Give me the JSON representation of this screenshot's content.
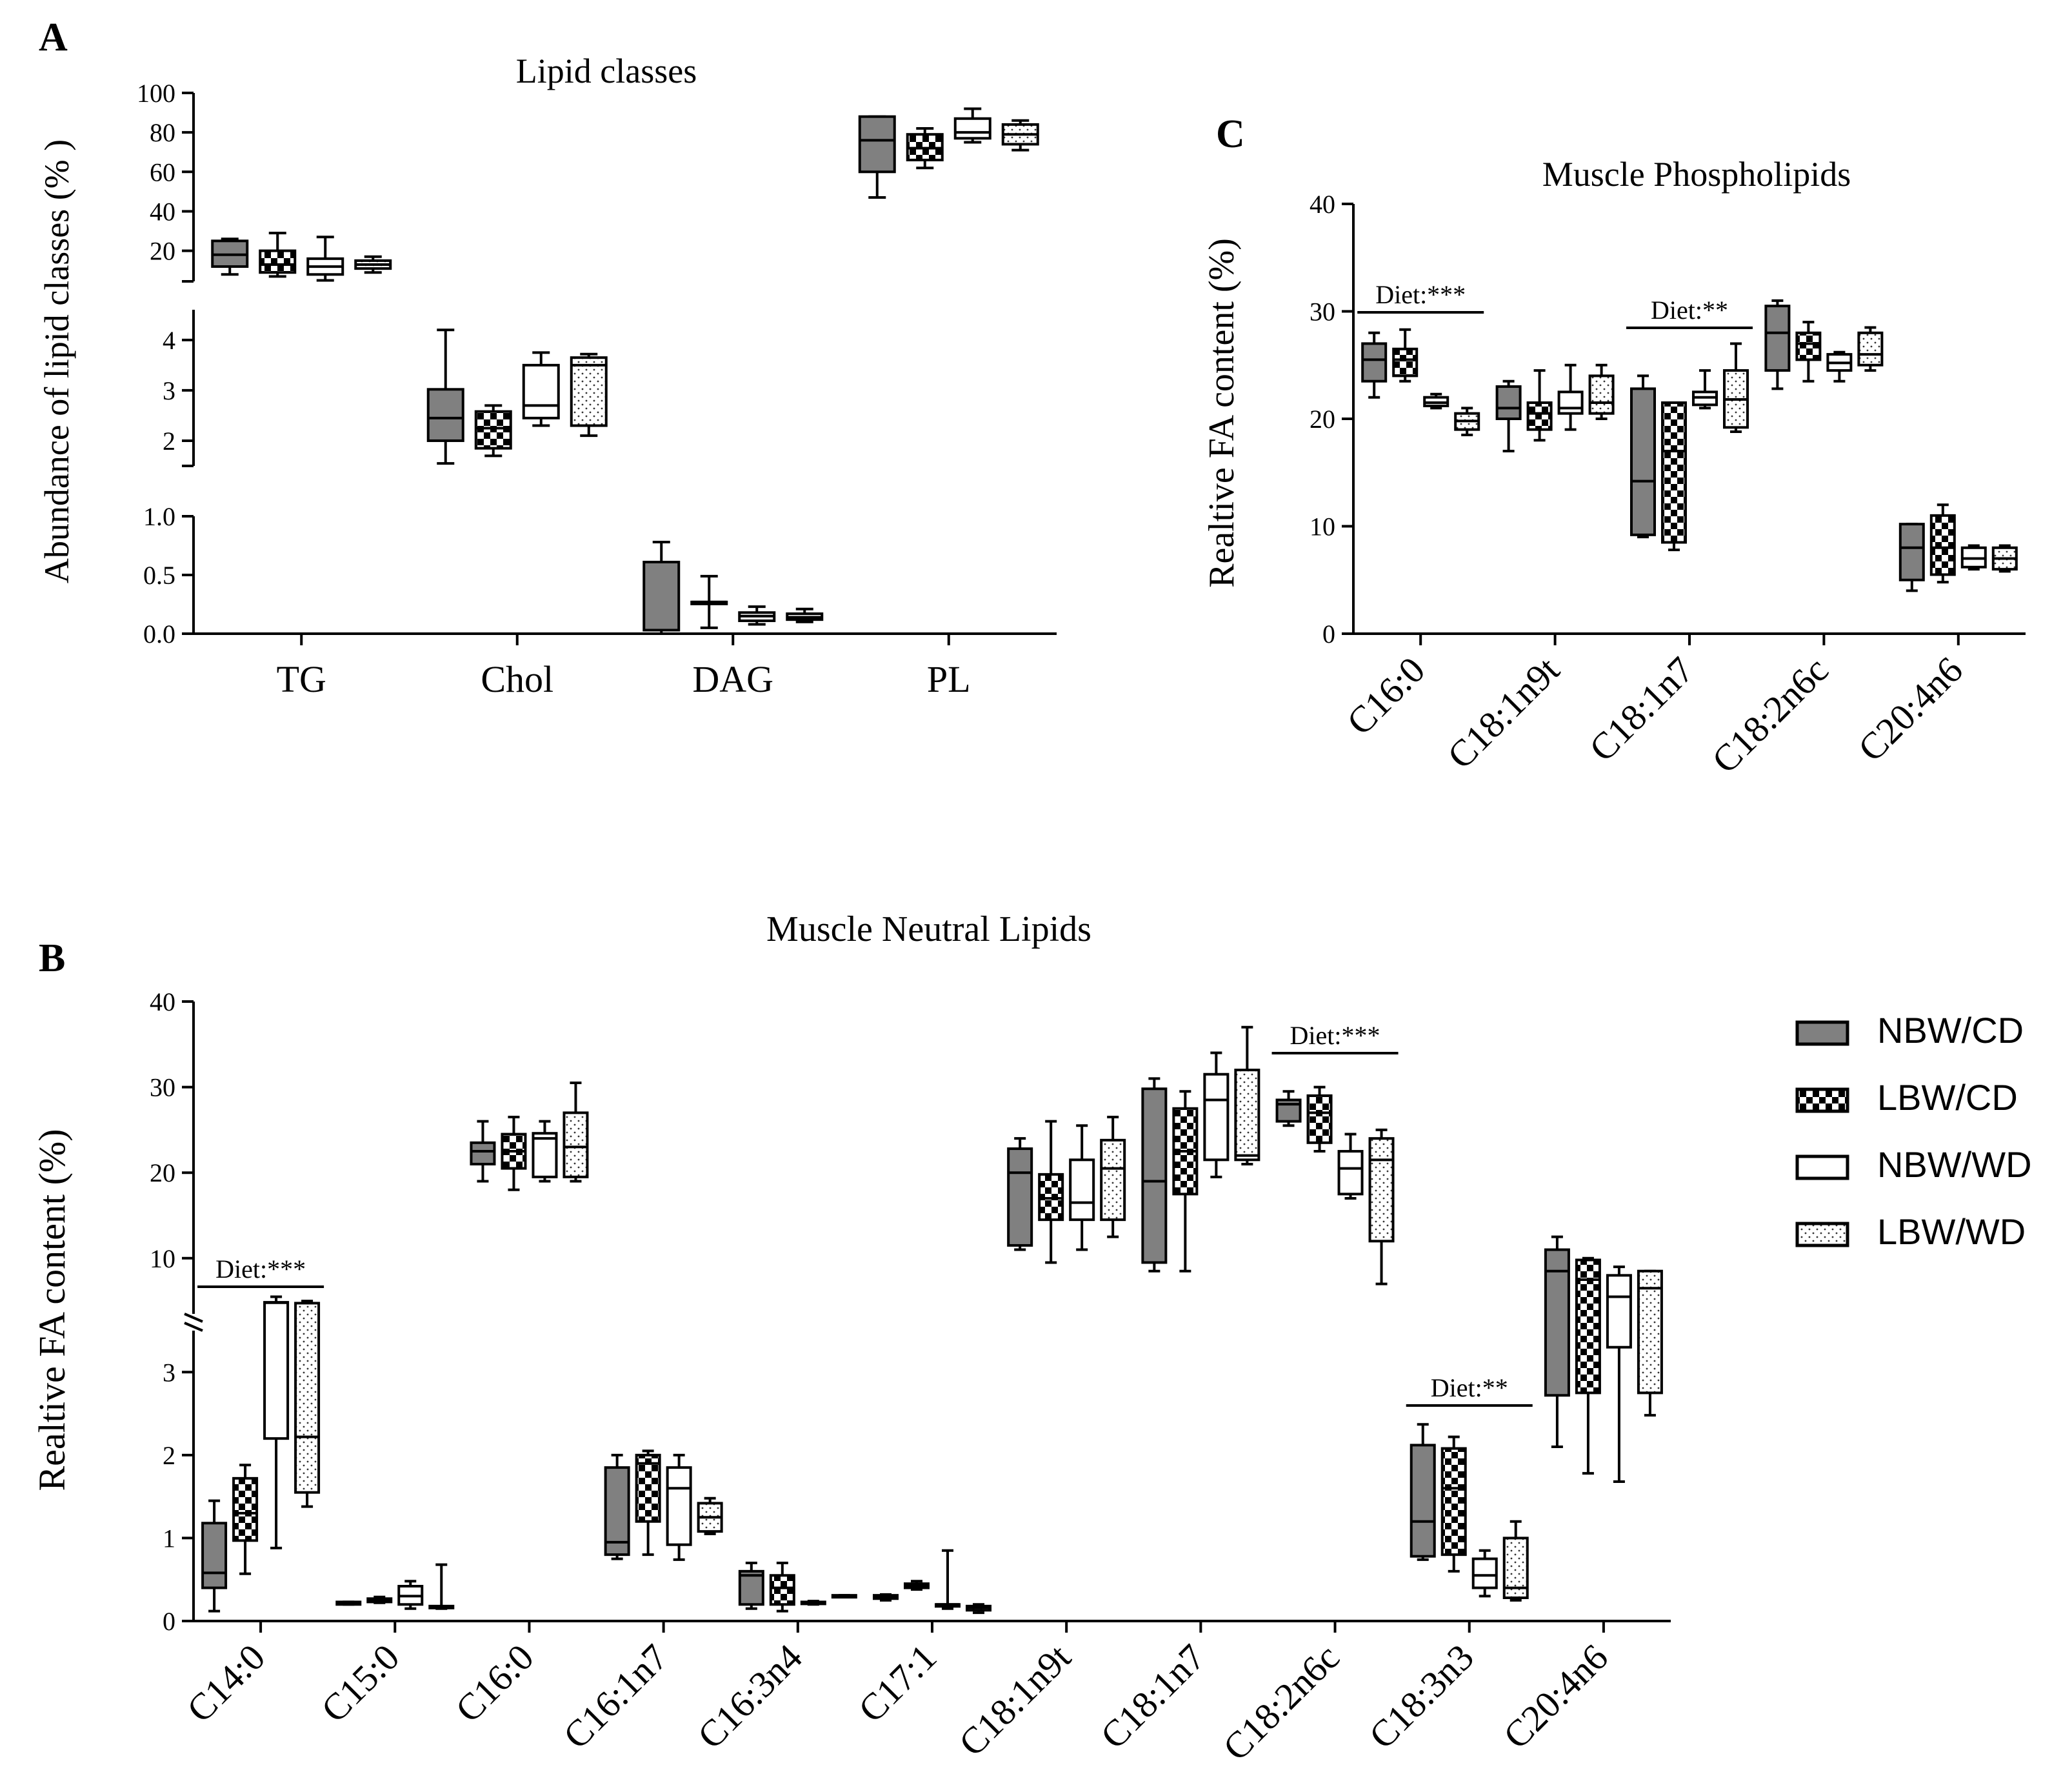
{
  "chart_data": [
    {
      "panel": "A",
      "type": "box",
      "title": "Lipid classes",
      "ylabel": "Abundance of lipid classes (% )",
      "categories": [
        "TG",
        "Chol",
        "DAG",
        "PL"
      ],
      "y_segments": [
        {
          "range": [
            0.0,
            1.0
          ],
          "ticks": [
            "0.0",
            "0.5",
            "1.0"
          ]
        },
        {
          "range": [
            1.5,
            4.6
          ],
          "ticks": [
            "2",
            "3",
            "4"
          ]
        },
        {
          "range": [
            4.5,
            100
          ],
          "ticks": [
            "20",
            "40",
            "60",
            "80",
            "100"
          ]
        }
      ],
      "series": [
        {
          "name": "NBW/CD",
          "boxes": [
            [
              8,
              12,
              18,
              25,
              26
            ],
            [
              1.55,
              2.0,
              2.45,
              3.02,
              4.2
            ],
            [
              0.0,
              0.03,
              0.03,
              0.61,
              0.78
            ],
            [
              47,
              60,
              76,
              88,
              88
            ]
          ]
        },
        {
          "name": "LBW/CD",
          "boxes": [
            [
              7,
              9,
              13,
              20,
              29
            ],
            [
              1.7,
              1.85,
              2.25,
              2.58,
              2.7
            ],
            [
              0.05,
              0.27,
              0.27,
              0.27,
              0.49
            ],
            [
              62,
              66,
              72,
              79,
              82
            ]
          ]
        },
        {
          "name": "NBW/WD",
          "boxes": [
            [
              5,
              8,
              12,
              16,
              27
            ],
            [
              2.3,
              2.45,
              2.7,
              3.5,
              3.75
            ],
            [
              0.08,
              0.11,
              0.15,
              0.18,
              0.23
            ],
            [
              75,
              77,
              80,
              87,
              92
            ]
          ]
        },
        {
          "name": "LBW/WD",
          "boxes": [
            [
              9,
              11,
              13,
              15,
              17
            ],
            [
              2.1,
              2.3,
              3.5,
              3.65,
              3.72
            ],
            [
              0.1,
              0.12,
              0.14,
              0.17,
              0.21
            ],
            [
              71,
              74,
              79,
              84,
              86
            ]
          ]
        }
      ]
    },
    {
      "panel": "B",
      "type": "box",
      "title": "Muscle Neutral Lipids",
      "ylabel": "Realtive FA content (%)",
      "categories": [
        "C14:0",
        "C15:0",
        "C16:0",
        "C16:1n7",
        "C16:3n4",
        "C17:1",
        "C18:1n9t",
        "C18:1n7",
        "C18:2n6c",
        "C18:3n3",
        "C20:4n6"
      ],
      "y_segments": [
        {
          "range": [
            0,
            3.5
          ],
          "ticks": [
            "0",
            "1",
            "2",
            "3"
          ]
        },
        {
          "range": [
            3.5,
            40
          ],
          "ticks": [
            "10",
            "20",
            "30",
            "40"
          ]
        }
      ],
      "annotations": [
        {
          "text": "Diet:***",
          "category": "C14:0"
        },
        {
          "text": "Diet:***",
          "category": "C18:2n6c"
        },
        {
          "text": "Diet:**",
          "category": "C18:3n3"
        }
      ],
      "series": [
        {
          "name": "NBW/CD",
          "boxes": [
            [
              0.12,
              0.4,
              0.58,
              1.18,
              1.45
            ],
            [
              0.2,
              0.2,
              0.21,
              0.23,
              0.23
            ],
            [
              19,
              21,
              22.5,
              23.5,
              26
            ],
            [
              0.75,
              0.8,
              0.95,
              1.85,
              2.0
            ],
            [
              0.15,
              0.2,
              0.55,
              0.6,
              0.7
            ],
            [
              0.25,
              0.27,
              0.28,
              0.31,
              0.32
            ],
            [
              11,
              11.5,
              20,
              22.8,
              24
            ],
            [
              8.5,
              9.5,
              19,
              29.8,
              31
            ],
            [
              25.5,
              26,
              28,
              28.5,
              29.5
            ],
            [
              0.74,
              0.78,
              1.2,
              2.12,
              2.37
            ],
            [
              2.1,
              2.72,
              8.5,
              11,
              12.5
            ]
          ]
        },
        {
          "name": "LBW/CD",
          "boxes": [
            [
              0.57,
              0.97,
              1.3,
              1.72,
              1.88
            ],
            [
              0.22,
              0.23,
              0.25,
              0.27,
              0.29
            ],
            [
              18,
              20.5,
              22.5,
              24.5,
              26.5
            ],
            [
              0.8,
              1.2,
              1.9,
              2.0,
              2.05
            ],
            [
              0.12,
              0.2,
              0.4,
              0.55,
              0.7
            ],
            [
              0.38,
              0.4,
              0.42,
              0.45,
              0.48
            ],
            [
              9.5,
              14.5,
              17,
              19.8,
              26
            ],
            [
              8.5,
              17.5,
              22.5,
              27.5,
              29.5
            ],
            [
              22.5,
              23.5,
              27,
              29,
              30
            ],
            [
              0.6,
              0.8,
              1.6,
              2.08,
              2.22
            ],
            [
              1.78,
              2.75,
              7.5,
              9.8,
              10
            ]
          ]
        },
        {
          "name": "NBW/WD",
          "boxes": [
            [
              0.88,
              2.2,
              4.8,
              4.85,
              5.5
            ],
            [
              0.15,
              0.2,
              0.3,
              0.42,
              0.48
            ],
            [
              19,
              19.5,
              24,
              24.6,
              26
            ],
            [
              0.74,
              0.92,
              1.6,
              1.85,
              2.0
            ],
            [
              0.2,
              0.21,
              0.22,
              0.23,
              0.24
            ],
            [
              0.15,
              0.19,
              0.2,
              0.2,
              0.85
            ],
            [
              11,
              14.5,
              16.5,
              21.5,
              25.5
            ],
            [
              19.5,
              21.5,
              28.5,
              31.5,
              34
            ],
            [
              17,
              17.5,
              20.5,
              22.5,
              24.5
            ],
            [
              0.3,
              0.4,
              0.55,
              0.75,
              0.85
            ],
            [
              1.68,
              3.3,
              5.5,
              8,
              9
            ]
          ]
        },
        {
          "name": "LBW/WD",
          "boxes": [
            [
              1.38,
              1.55,
              2.22,
              4.75,
              5.0
            ],
            [
              0.15,
              0.16,
              0.17,
              0.18,
              0.68
            ],
            [
              19,
              19.5,
              23,
              27,
              30.5
            ],
            [
              1.05,
              1.08,
              1.25,
              1.42,
              1.48
            ],
            [
              0.29,
              0.29,
              0.3,
              0.31,
              0.31
            ],
            [
              0.1,
              0.13,
              0.16,
              0.18,
              0.2
            ],
            [
              12.5,
              14.5,
              20.5,
              23.8,
              26.5
            ],
            [
              21,
              21.5,
              22,
              32,
              37
            ],
            [
              7,
              12,
              21.5,
              24,
              25
            ],
            [
              0.25,
              0.28,
              0.4,
              1.0,
              1.2
            ],
            [
              2.48,
              2.75,
              6.5,
              8.5,
              8.5
            ]
          ]
        }
      ]
    },
    {
      "panel": "C",
      "type": "box",
      "title": "Muscle Phospholipids",
      "ylabel": "Realtive FA content (%)",
      "categories": [
        "C16:0",
        "C18:1n9t",
        "C18:1n7",
        "C18:2n6c",
        "C20:4n6"
      ],
      "ylim": [
        0,
        40
      ],
      "yticks": [
        "0",
        "10",
        "20",
        "30",
        "40"
      ],
      "annotations": [
        {
          "text": "Diet:***",
          "category": "C16:0"
        },
        {
          "text": "Diet:**",
          "category": "C18:1n7"
        }
      ],
      "series": [
        {
          "name": "NBW/CD",
          "boxes": [
            [
              22,
              23.5,
              25.5,
              27,
              28
            ],
            [
              17,
              20,
              21,
              23,
              23.5
            ],
            [
              9,
              9.2,
              14.2,
              22.8,
              24
            ],
            [
              22.8,
              24.5,
              28,
              30.5,
              31
            ],
            [
              4,
              5,
              8,
              10.2,
              10.2
            ]
          ]
        },
        {
          "name": "LBW/CD",
          "boxes": [
            [
              23.5,
              24,
              25.5,
              26.5,
              28.3
            ],
            [
              18,
              19,
              20.5,
              21.5,
              24.5
            ],
            [
              7.8,
              8.5,
              17,
              21.5,
              21.5
            ],
            [
              23.5,
              25.5,
              27,
              28,
              29
            ],
            [
              4.8,
              5.5,
              8,
              11,
              12
            ]
          ]
        },
        {
          "name": "NBW/WD",
          "boxes": [
            [
              21,
              21.2,
              21.5,
              22,
              22.3
            ],
            [
              19,
              20.5,
              21,
              22.5,
              25
            ],
            [
              21,
              21.3,
              22,
              22.5,
              24.5
            ],
            [
              23.5,
              24.5,
              25.2,
              26,
              26.2
            ],
            [
              6,
              6.2,
              7,
              8,
              8.2
            ]
          ]
        },
        {
          "name": "LBW/WD",
          "boxes": [
            [
              18.5,
              19,
              19.8,
              20.5,
              21
            ],
            [
              20,
              20.5,
              21.5,
              24,
              25
            ],
            [
              18.8,
              19.2,
              21.8,
              24.5,
              27
            ],
            [
              24.5,
              25,
              26,
              28,
              28.5
            ],
            [
              5.8,
              6,
              7,
              8,
              8.2
            ]
          ]
        }
      ]
    }
  ],
  "panel_labels": {
    "a": "A",
    "b": "B",
    "c": "C"
  },
  "legend": [
    {
      "label": "NBW/CD",
      "pattern": "gray"
    },
    {
      "label": "LBW/CD",
      "pattern": "check"
    },
    {
      "label": "NBW/WD",
      "pattern": "white"
    },
    {
      "label": "LBW/WD",
      "pattern": "dots"
    }
  ]
}
